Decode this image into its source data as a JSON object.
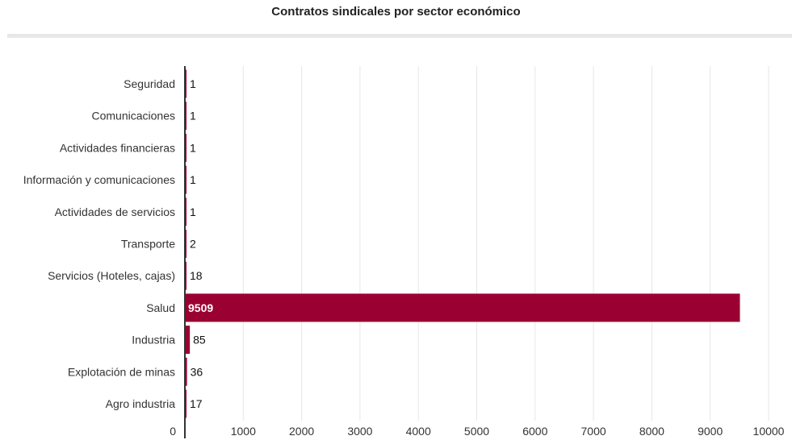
{
  "chart_data": {
    "type": "bar",
    "orientation": "horizontal",
    "title": "Contratos sindicales por sector económico",
    "xlabel": "",
    "ylabel": "",
    "categories": [
      "Seguridad",
      "Comunicaciones",
      "Actividades financieras",
      "Información y comunicaciones",
      "Actividades de servicios",
      "Transporte",
      "Servicios (Hoteles, cajas)",
      "Salud",
      "Industria",
      "Explotación de minas",
      "Agro industria"
    ],
    "values": [
      1,
      1,
      1,
      1,
      1,
      2,
      18,
      9509,
      85,
      36,
      17
    ],
    "xlim": [
      0,
      10000
    ],
    "x_ticks": [
      0,
      1000,
      2000,
      3000,
      4000,
      5000,
      6000,
      7000,
      8000,
      9000,
      10000
    ],
    "x_tick_labels": [
      "0",
      "1000",
      "2000",
      "3000",
      "4000",
      "5000",
      "6000",
      "7000",
      "8000",
      "9000",
      "10000"
    ],
    "grid": "vertical",
    "legend": "none",
    "data_labels": true,
    "colors": {
      "bar": "#9b0033",
      "axis": "#333333",
      "grid": "#e6e6e6",
      "text": "#333333",
      "label_inside": "#ffffff",
      "title_rule": "#e8e8e8"
    }
  }
}
